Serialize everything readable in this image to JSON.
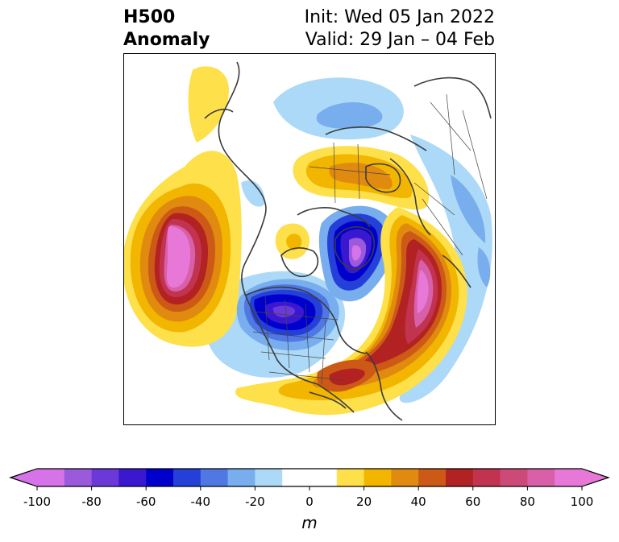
{
  "title": {
    "left_line1": "H500",
    "left_line2": "Anomaly",
    "right_line1": "Init: Wed 05 Jan 2022",
    "right_line2": "Valid: 29 Jan – 04 Feb"
  },
  "colorbar": {
    "unit": "m",
    "ticks": [
      "-100",
      "-80",
      "-60",
      "-40",
      "-20",
      "0",
      "20",
      "40",
      "60",
      "80",
      "100"
    ],
    "colors": [
      "#d673e8",
      "#9b59dc",
      "#6a39d8",
      "#3a18d0",
      "#0000cd",
      "#2540d9",
      "#4f78e2",
      "#78aeee",
      "#acd9f7",
      "#ffffff",
      "#ffffff",
      "#fde04a",
      "#f2b500",
      "#e08a10",
      "#cc5a16",
      "#b22222",
      "#c23350",
      "#cc4a78",
      "#d860a8",
      "#e878d8"
    ]
  },
  "map": {
    "projection": "polar stereographic, North America centered",
    "features": [
      "ridge over eastern North Pacific",
      "trough over central North America",
      "trough near Baffin Bay",
      "ridge over western Atlantic",
      "ridge over northern Europe/Scandinavia"
    ]
  }
}
